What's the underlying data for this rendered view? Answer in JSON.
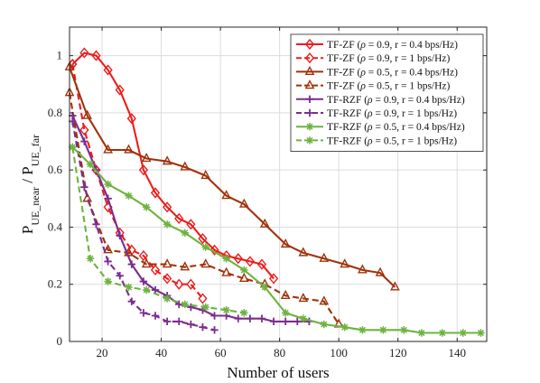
{
  "chart_data": {
    "type": "line",
    "title": "",
    "xlabel": "Number of users",
    "ylabel": {
      "base1": "P",
      "sub1": "UE_near",
      "sep": " / ",
      "base2": "P",
      "sub2": "UE_far"
    },
    "xlim": [
      9,
      150
    ],
    "ylim": [
      0,
      1.1
    ],
    "xticks": [
      20,
      40,
      60,
      80,
      100,
      120,
      140
    ],
    "yticks": [
      0,
      0.2,
      0.4,
      0.6,
      0.8,
      1
    ],
    "tick_labels_x": [
      "20",
      "40",
      "60",
      "80",
      "100",
      "120",
      "140"
    ],
    "tick_labels_y": [
      "0",
      "0.2",
      "0.4",
      "0.6",
      "0.8",
      "1"
    ],
    "grid": true,
    "legend_position": "top-right",
    "series": [
      {
        "name": "TF-ZF (ρ = 0.9, r = 0.4 bps/Hz)",
        "name_parts": [
          "TF-ZF (",
          "ρ",
          " = 0.9, r = 0.4 bps/Hz)"
        ],
        "color": "#ee1c1c",
        "dash": "solid",
        "marker": "diamond",
        "x": [
          10,
          14,
          18,
          22,
          26,
          30,
          34,
          38,
          42,
          46,
          50,
          54,
          58,
          62,
          66,
          70,
          74,
          78
        ],
        "y": [
          0.97,
          1.01,
          1.0,
          0.95,
          0.88,
          0.78,
          0.6,
          0.52,
          0.47,
          0.43,
          0.41,
          0.36,
          0.32,
          0.3,
          0.29,
          0.28,
          0.27,
          0.22
        ]
      },
      {
        "name": "TF-ZF (ρ = 0.9, r = 1 bps/Hz)",
        "name_parts": [
          "TF-ZF (",
          "ρ",
          " = 0.9, r = 1 bps/Hz)"
        ],
        "color": "#ee1c1c",
        "dash": "dashed",
        "marker": "diamond",
        "x": [
          10,
          14,
          18,
          22,
          26,
          30,
          34,
          38,
          42,
          46,
          50,
          54
        ],
        "y": [
          0.97,
          0.74,
          0.6,
          0.47,
          0.38,
          0.32,
          0.3,
          0.25,
          0.22,
          0.2,
          0.2,
          0.15
        ]
      },
      {
        "name": "TF-ZF (ρ = 0.5, r = 0.4 bps/Hz)",
        "name_parts": [
          "TF-ZF (",
          "ρ",
          " = 0.5, r = 0.4 bps/Hz)"
        ],
        "color": "#a0320a",
        "dash": "solid",
        "marker": "triangle",
        "x": [
          9,
          15,
          22,
          29,
          35,
          42,
          48,
          55,
          62,
          68,
          75,
          82,
          88,
          95,
          102,
          108,
          114,
          119
        ],
        "y": [
          0.96,
          0.79,
          0.67,
          0.67,
          0.64,
          0.63,
          0.61,
          0.58,
          0.51,
          0.48,
          0.41,
          0.34,
          0.31,
          0.29,
          0.27,
          0.25,
          0.24,
          0.19
        ]
      },
      {
        "name": "TF-ZF (ρ = 0.5, r = 1 bps/Hz)",
        "name_parts": [
          "TF-ZF (",
          "ρ",
          " = 0.5, r = 1 bps/Hz)"
        ],
        "color": "#a0320a",
        "dash": "dashed",
        "marker": "triangle",
        "x": [
          9,
          15,
          22,
          29,
          35,
          42,
          48,
          55,
          62,
          68,
          75,
          82,
          88,
          95,
          100
        ],
        "y": [
          0.87,
          0.5,
          0.32,
          0.31,
          0.27,
          0.27,
          0.26,
          0.27,
          0.24,
          0.22,
          0.2,
          0.16,
          0.15,
          0.14,
          0.06
        ]
      },
      {
        "name": "TF-RZF (ρ = 0.9, r = 0.4 bps/Hz)",
        "name_parts": [
          "TF-RZF (",
          "ρ",
          " = 0.9, r = 0.4 bps/Hz)"
        ],
        "color": "#7b2d8e",
        "dash": "solid",
        "marker": "plus",
        "x": [
          10,
          14,
          18,
          22,
          26,
          30,
          34,
          38,
          42,
          46,
          50,
          54,
          58,
          62,
          66,
          70,
          74,
          78,
          82,
          86,
          90
        ],
        "y": [
          0.79,
          0.7,
          0.6,
          0.5,
          0.37,
          0.27,
          0.21,
          0.18,
          0.16,
          0.13,
          0.12,
          0.11,
          0.09,
          0.09,
          0.08,
          0.08,
          0.08,
          0.07,
          0.07,
          0.07,
          0.07
        ]
      },
      {
        "name": "TF-RZF (ρ = 0.9, r = 1 bps/Hz)",
        "name_parts": [
          "TF-RZF (",
          "ρ",
          " = 0.9, r = 1 bps/Hz)"
        ],
        "color": "#7b2d8e",
        "dash": "dashed",
        "marker": "plus",
        "x": [
          10,
          14,
          18,
          22,
          26,
          30,
          34,
          38,
          42,
          46,
          50,
          54,
          58
        ],
        "y": [
          0.77,
          0.54,
          0.41,
          0.28,
          0.23,
          0.14,
          0.1,
          0.09,
          0.07,
          0.07,
          0.06,
          0.05,
          0.04
        ]
      },
      {
        "name": "TF-RZF (ρ = 0.5, r = 0.4 bps/Hz)",
        "name_parts": [
          "TF-RZF (",
          "ρ",
          " = 0.5, r = 0.4 bps/Hz)"
        ],
        "color": "#6db33f",
        "dash": "solid",
        "marker": "asterisk",
        "x": [
          10,
          16,
          22,
          29,
          35,
          42,
          48,
          55,
          62,
          68,
          75,
          82,
          88,
          95,
          102,
          108,
          115,
          122,
          128,
          135,
          142,
          148
        ],
        "y": [
          0.68,
          0.62,
          0.55,
          0.51,
          0.47,
          0.41,
          0.38,
          0.33,
          0.29,
          0.25,
          0.19,
          0.1,
          0.08,
          0.06,
          0.05,
          0.04,
          0.04,
          0.04,
          0.03,
          0.03,
          0.03,
          0.03
        ]
      },
      {
        "name": "TF-RZF (ρ = 0.5, r = 1 bps/Hz)",
        "name_parts": [
          "TF-RZF (",
          "ρ",
          " = 0.5, r = 1 bps/Hz)"
        ],
        "color": "#6db33f",
        "dash": "dashed",
        "marker": "asterisk",
        "x": [
          10,
          16,
          22,
          29,
          35,
          42,
          48,
          55,
          62,
          68
        ],
        "y": [
          0.68,
          0.29,
          0.21,
          0.19,
          0.18,
          0.15,
          0.13,
          0.12,
          0.11,
          0.1
        ]
      }
    ]
  }
}
